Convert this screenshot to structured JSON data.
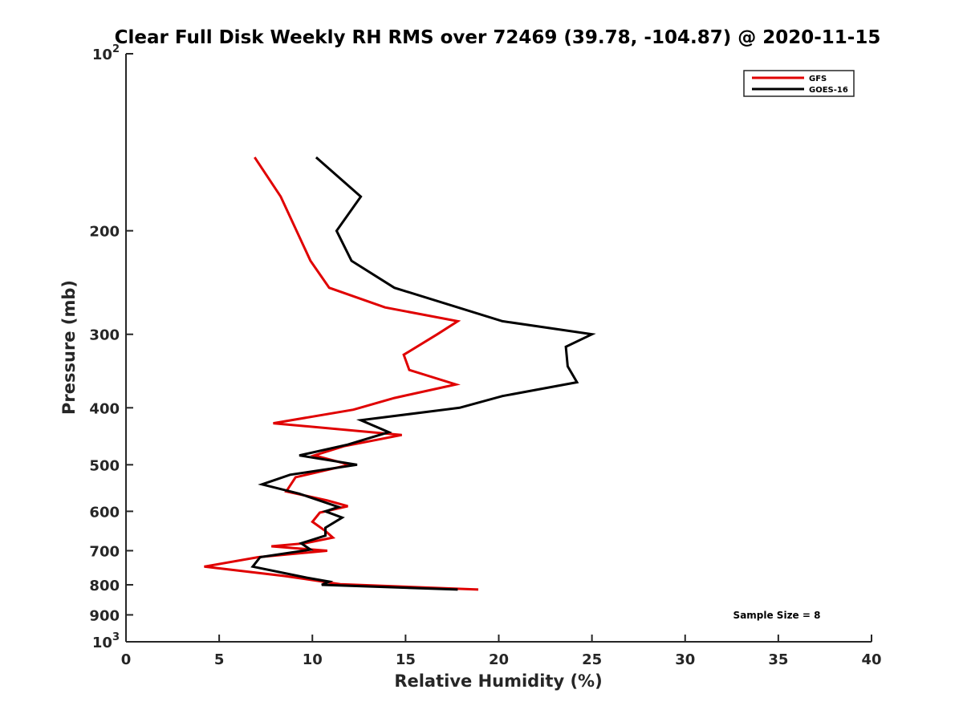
{
  "chart_data": {
    "type": "line",
    "title": "Clear Full Disk Weekly RH RMS over 72469 (39.78, -104.87) @ 2020-11-15",
    "xlabel": "Relative Humidity (%)",
    "ylabel": "Pressure (mb)",
    "xlim": [
      0,
      40
    ],
    "ylim": [
      100,
      1000
    ],
    "y_scale": "log",
    "y_reversed": true,
    "grid": false,
    "legend_position": "top-right",
    "x_ticks": [
      0,
      5,
      10,
      15,
      20,
      25,
      30,
      35,
      40
    ],
    "x_tick_labels": [
      "0",
      "5",
      "10",
      "15",
      "20",
      "25",
      "30",
      "35",
      "40"
    ],
    "y_ticks": [
      100,
      200,
      300,
      400,
      500,
      600,
      700,
      800,
      900,
      1000
    ],
    "y_tick_labels": [
      {
        "base": "10",
        "exp": "2"
      },
      {
        "base": "200",
        "exp": ""
      },
      {
        "base": "300",
        "exp": ""
      },
      {
        "base": "400",
        "exp": ""
      },
      {
        "base": "500",
        "exp": ""
      },
      {
        "base": "600",
        "exp": ""
      },
      {
        "base": "700",
        "exp": ""
      },
      {
        "base": "800",
        "exp": ""
      },
      {
        "base": "900",
        "exp": ""
      },
      {
        "base": "10",
        "exp": "3"
      }
    ],
    "series": [
      {
        "name": "GFS",
        "color": "#e00000",
        "points": [
          [
            6.9,
            150
          ],
          [
            8.3,
            175
          ],
          [
            9.9,
            225
          ],
          [
            10.9,
            250
          ],
          [
            13.9,
            270
          ],
          [
            17.8,
            285
          ],
          [
            16.7,
            300
          ],
          [
            14.9,
            325
          ],
          [
            15.2,
            345
          ],
          [
            17.7,
            365
          ],
          [
            14.4,
            385
          ],
          [
            12.2,
            403
          ],
          [
            7.9,
            425
          ],
          [
            14.8,
            445
          ],
          [
            11.7,
            465
          ],
          [
            10.1,
            482
          ],
          [
            12.0,
            500
          ],
          [
            9.1,
            525
          ],
          [
            8.6,
            555
          ],
          [
            10.8,
            575
          ],
          [
            11.9,
            588
          ],
          [
            10.4,
            603
          ],
          [
            10.0,
            625
          ],
          [
            10.7,
            648
          ],
          [
            11.1,
            665
          ],
          [
            9.6,
            680
          ],
          [
            7.8,
            688
          ],
          [
            10.8,
            700
          ],
          [
            7.1,
            718
          ],
          [
            4.2,
            745
          ],
          [
            8.5,
            773
          ],
          [
            11.5,
            798
          ],
          [
            18.9,
            815
          ]
        ]
      },
      {
        "name": "GOES-16",
        "color": "#000000",
        "points": [
          [
            10.2,
            150
          ],
          [
            12.6,
            175
          ],
          [
            11.3,
            200
          ],
          [
            12.1,
            225
          ],
          [
            14.4,
            250
          ],
          [
            20.2,
            285
          ],
          [
            25.0,
            300
          ],
          [
            23.6,
            315
          ],
          [
            23.7,
            340
          ],
          [
            24.2,
            362
          ],
          [
            20.2,
            382
          ],
          [
            17.9,
            400
          ],
          [
            12.6,
            420
          ],
          [
            14.1,
            440
          ],
          [
            11.9,
            462
          ],
          [
            9.3,
            482
          ],
          [
            12.4,
            500
          ],
          [
            8.8,
            520
          ],
          [
            7.3,
            540
          ],
          [
            9.3,
            560
          ],
          [
            11.4,
            590
          ],
          [
            10.7,
            600
          ],
          [
            11.6,
            615
          ],
          [
            10.7,
            640
          ],
          [
            10.7,
            660
          ],
          [
            9.4,
            680
          ],
          [
            9.9,
            697
          ],
          [
            7.2,
            718
          ],
          [
            6.8,
            745
          ],
          [
            9.7,
            778
          ],
          [
            10.9,
            790
          ],
          [
            10.5,
            800
          ],
          [
            17.8,
            815
          ]
        ]
      }
    ],
    "annotation": "Sample Size = 8"
  }
}
